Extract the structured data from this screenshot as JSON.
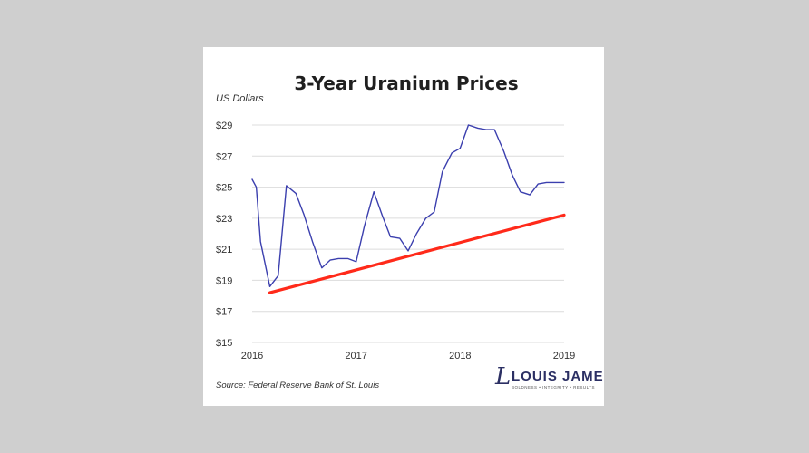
{
  "chart_data": {
    "type": "line",
    "title": "3-Year Uranium Prices",
    "ylabel": "US Dollars",
    "xlabel": "",
    "x_ticks": [
      "2016",
      "2017",
      "2018",
      "2019"
    ],
    "x_range": [
      2016.0,
      2019.0
    ],
    "y_ticks": [
      "$15",
      "$17",
      "$19",
      "$21",
      "$23",
      "$25",
      "$27",
      "$29"
    ],
    "ylim": [
      15,
      29
    ],
    "grid": true,
    "series": [
      {
        "color": "#3b3fae",
        "x": [
          2016.0,
          2016.04,
          2016.08,
          2016.17,
          2016.25,
          2016.33,
          2016.42,
          2016.5,
          2016.58,
          2016.67,
          2016.75,
          2016.83,
          2016.92,
          2017.0,
          2017.08,
          2017.17,
          2017.25,
          2017.33,
          2017.42,
          2017.5,
          2017.58,
          2017.67,
          2017.75,
          2017.83,
          2017.92,
          2018.0,
          2018.08,
          2018.17,
          2018.25,
          2018.33,
          2018.42,
          2018.5,
          2018.58,
          2018.67,
          2018.75,
          2018.83,
          2018.92,
          2019.0
        ],
        "values": [
          25.5,
          25.0,
          21.5,
          18.6,
          19.3,
          25.1,
          24.6,
          23.2,
          21.5,
          19.8,
          20.3,
          20.4,
          20.4,
          20.2,
          22.5,
          24.7,
          23.2,
          21.8,
          21.7,
          20.9,
          22.0,
          23.0,
          23.4,
          26.0,
          27.2,
          27.5,
          29.0,
          28.8,
          28.7,
          28.7,
          27.3,
          25.8,
          24.7,
          24.5,
          25.2,
          25.3,
          25.3,
          25.3
        ]
      },
      {
        "color": "#ff2a1a",
        "x": [
          2016.17,
          2019.0
        ],
        "values": [
          18.2,
          23.2
        ]
      }
    ]
  },
  "source": "Source: Federal Reserve Bank of St. Louis",
  "brand": {
    "glyph": "L",
    "name": "LOUIS JAMES",
    "tagline": "BOLDNESS  •  INTEGRITY  •  RESULTS"
  }
}
